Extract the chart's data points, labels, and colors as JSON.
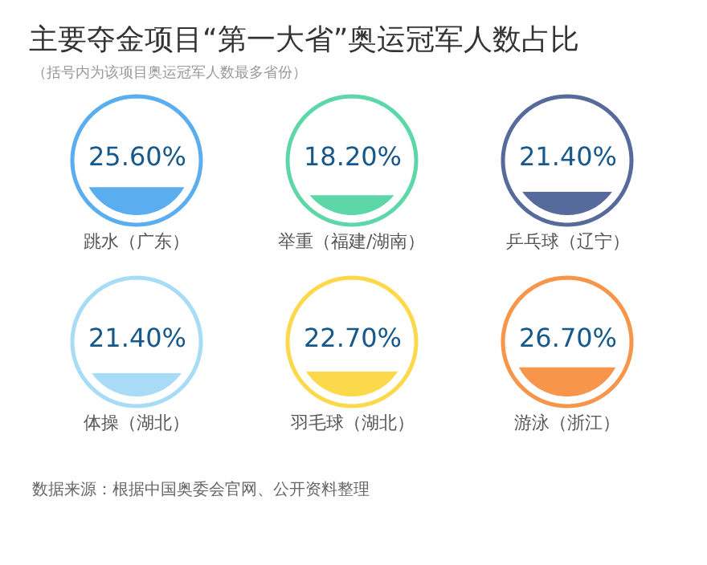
{
  "chart_data": {
    "type": "other",
    "title": "主要夺金项目“第一大省”奥运冠军人数占比",
    "subtitle": "（括号内为该项目奥运冠军人数最多省份）",
    "categories": [
      "跳水（广东）",
      "举重（福建/湖南）",
      "乒乓球（辽宁）",
      "体操（湖北）",
      "羽毛球（湖北）",
      "游泳（浙江）"
    ],
    "values": [
      25.6,
      18.2,
      21.4,
      21.4,
      22.7,
      26.7
    ],
    "value_labels": [
      "25.60%",
      "18.20%",
      "21.40%",
      "21.40%",
      "22.70%",
      "26.70%"
    ],
    "colors": [
      "#5aaef0",
      "#5dd6a8",
      "#566a9c",
      "#a8dcf6",
      "#fcd94a",
      "#f7954a"
    ],
    "annotations": [
      "数据来源：根据中国奥委会官网、公开资料整理"
    ]
  }
}
